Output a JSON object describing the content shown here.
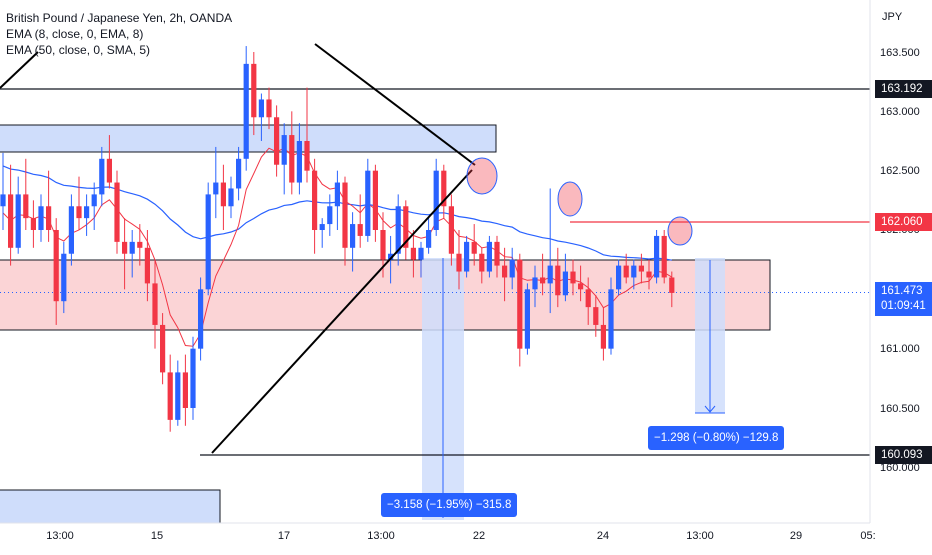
{
  "legend": {
    "symbol": "British Pound / Japanese Yen, 2h, OANDA",
    "ema8": "EMA (8, close, 0, EMA, 8)",
    "ema50": "EMA (50, close, 0, SMA, 5)"
  },
  "axis": {
    "currency": "JPY",
    "price_ticks": [
      "163.500",
      "163.000",
      "162.500",
      "162.000",
      "161.500",
      "161.000",
      "160.500",
      "160.000"
    ],
    "time_ticks": [
      "13:00",
      "15",
      "17",
      "13:00",
      "22",
      "24",
      "13:00",
      "29",
      "05:"
    ]
  },
  "price_tags": {
    "upper_level": "163.192",
    "red_level": "162.060",
    "current_price": "161.473",
    "countdown": "01:09:41",
    "lower_level": "160.093"
  },
  "measures": {
    "left": "−3.158 (−1.95%) −315.8",
    "right": "−1.298 (−0.80%) −129.8"
  },
  "colors": {
    "bull": "#2962ff",
    "bear": "#f23645",
    "ema8": "#f23645",
    "ema50": "#2962ff",
    "zone_blue": "#cfddfb",
    "zone_red": "#fbd4d6",
    "measure": "#2962ff"
  },
  "chart_data": {
    "type": "candlestick",
    "title": "British Pound / Japanese Yen, 2h, OANDA",
    "ylim": [
      159.6,
      163.85
    ],
    "horizontal_levels": [
      163.192,
      162.06,
      160.093
    ],
    "current_price": 161.473,
    "candles": [
      [
        162.2,
        162.65,
        162.0,
        162.3
      ],
      [
        162.3,
        162.55,
        161.7,
        161.85
      ],
      [
        161.85,
        162.45,
        161.8,
        162.3
      ],
      [
        162.3,
        162.6,
        162.0,
        162.1
      ],
      [
        162.1,
        162.25,
        161.85,
        162.0
      ],
      [
        162.0,
        162.3,
        161.9,
        162.2
      ],
      [
        162.2,
        162.5,
        161.9,
        162.0
      ],
      [
        162.0,
        162.1,
        161.2,
        161.4
      ],
      [
        161.4,
        161.9,
        161.3,
        161.8
      ],
      [
        161.8,
        162.3,
        161.7,
        162.2
      ],
      [
        162.2,
        162.45,
        162.0,
        162.1
      ],
      [
        162.1,
        162.3,
        161.95,
        162.2
      ],
      [
        162.2,
        162.4,
        162.0,
        162.3
      ],
      [
        162.3,
        162.7,
        162.2,
        162.6
      ],
      [
        162.6,
        162.8,
        162.35,
        162.4
      ],
      [
        162.4,
        162.5,
        161.8,
        161.9
      ],
      [
        161.9,
        162.1,
        161.5,
        161.8
      ],
      [
        161.8,
        162.0,
        161.6,
        161.9
      ],
      [
        161.9,
        162.05,
        161.7,
        161.85
      ],
      [
        161.85,
        162.0,
        161.4,
        161.55
      ],
      [
        161.55,
        161.75,
        161.0,
        161.2
      ],
      [
        161.2,
        161.3,
        160.7,
        160.8
      ],
      [
        160.8,
        160.95,
        160.3,
        160.4
      ],
      [
        160.4,
        160.9,
        160.35,
        160.8
      ],
      [
        160.8,
        160.95,
        160.35,
        160.5
      ],
      [
        160.5,
        161.1,
        160.4,
        161.0
      ],
      [
        161.0,
        161.6,
        160.9,
        161.5
      ],
      [
        161.5,
        162.4,
        161.45,
        162.3
      ],
      [
        162.3,
        162.7,
        162.1,
        162.4
      ],
      [
        162.4,
        162.55,
        162.0,
        162.2
      ],
      [
        162.2,
        162.45,
        162.1,
        162.35
      ],
      [
        162.35,
        162.7,
        162.25,
        162.6
      ],
      [
        162.6,
        163.55,
        162.5,
        163.4
      ],
      [
        163.4,
        163.5,
        162.8,
        162.95
      ],
      [
        162.95,
        163.15,
        162.75,
        163.1
      ],
      [
        163.1,
        163.2,
        162.85,
        162.95
      ],
      [
        162.95,
        163.05,
        162.45,
        162.55
      ],
      [
        162.55,
        162.9,
        162.3,
        162.8
      ],
      [
        162.8,
        163.0,
        162.3,
        162.4
      ],
      [
        162.4,
        162.9,
        162.3,
        162.75
      ],
      [
        162.75,
        163.2,
        162.4,
        162.5
      ],
      [
        162.5,
        162.6,
        161.8,
        162.0
      ],
      [
        162.0,
        162.1,
        161.85,
        162.05
      ],
      [
        162.05,
        162.3,
        161.95,
        162.2
      ],
      [
        162.2,
        162.5,
        162.0,
        162.4
      ],
      [
        162.4,
        162.45,
        161.7,
        161.85
      ],
      [
        161.85,
        162.15,
        161.65,
        162.05
      ],
      [
        162.05,
        162.3,
        161.85,
        161.95
      ],
      [
        161.95,
        162.6,
        161.9,
        162.5
      ],
      [
        162.5,
        162.55,
        161.9,
        162.0
      ],
      [
        162.0,
        162.15,
        161.6,
        161.75
      ],
      [
        161.75,
        161.95,
        161.55,
        161.8
      ],
      [
        161.8,
        162.3,
        161.7,
        162.2
      ],
      [
        162.2,
        162.25,
        161.75,
        161.85
      ],
      [
        161.85,
        162.0,
        161.6,
        161.75
      ],
      [
        161.75,
        161.9,
        161.6,
        161.85
      ],
      [
        161.85,
        162.1,
        161.8,
        162.0
      ],
      [
        162.0,
        162.6,
        161.95,
        162.5
      ],
      [
        162.5,
        162.55,
        162.1,
        162.2
      ],
      [
        162.2,
        162.3,
        161.7,
        161.8
      ],
      [
        161.8,
        162.0,
        161.5,
        161.65
      ],
      [
        161.65,
        161.95,
        161.6,
        161.9
      ],
      [
        161.9,
        162.05,
        161.7,
        161.8
      ],
      [
        161.8,
        161.85,
        161.55,
        161.65
      ],
      [
        161.65,
        161.95,
        161.6,
        161.9
      ],
      [
        161.9,
        161.95,
        161.6,
        161.7
      ],
      [
        161.7,
        161.85,
        161.4,
        161.6
      ],
      [
        161.6,
        161.85,
        161.5,
        161.75
      ],
      [
        161.75,
        161.8,
        160.85,
        161.0
      ],
      [
        161.0,
        161.55,
        160.95,
        161.5
      ],
      [
        161.5,
        161.7,
        161.35,
        161.6
      ],
      [
        161.6,
        161.8,
        161.45,
        161.55
      ],
      [
        161.55,
        162.35,
        161.3,
        161.7
      ],
      [
        161.7,
        161.85,
        161.35,
        161.45
      ],
      [
        161.45,
        161.8,
        161.4,
        161.65
      ],
      [
        161.65,
        161.75,
        161.45,
        161.55
      ],
      [
        161.55,
        161.7,
        161.4,
        161.5
      ],
      [
        161.5,
        161.6,
        161.2,
        161.35
      ],
      [
        161.35,
        161.45,
        161.1,
        161.2
      ],
      [
        161.2,
        161.35,
        160.9,
        161.0
      ],
      [
        161.0,
        161.6,
        160.95,
        161.5
      ],
      [
        161.5,
        161.75,
        161.45,
        161.7
      ],
      [
        161.7,
        161.8,
        161.55,
        161.6
      ],
      [
        161.6,
        161.75,
        161.5,
        161.7
      ],
      [
        161.7,
        161.8,
        161.55,
        161.65
      ],
      [
        161.65,
        161.75,
        161.5,
        161.6
      ],
      [
        161.6,
        162.0,
        161.55,
        161.95
      ],
      [
        161.95,
        162.0,
        161.55,
        161.6
      ],
      [
        161.6,
        161.65,
        161.35,
        161.47
      ]
    ]
  }
}
